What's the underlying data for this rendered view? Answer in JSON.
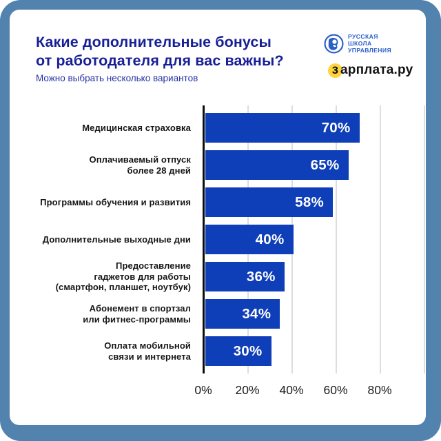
{
  "frame": {
    "border_color": "#5283ae",
    "card_bg": "#ffffff"
  },
  "header": {
    "title_line1": "Какие дополнительные бонусы",
    "title_line2": "от работодателя для вас важны?",
    "subtitle": "Можно выбрать несколько вариантов",
    "title_color": "#171f96",
    "subtitle_color": "#2531a5"
  },
  "logos": {
    "rsu": {
      "lines": [
        "РУССКАЯ",
        "ШКОЛА",
        "УПРАВЛЕНИЯ"
      ],
      "color": "#2b5fc7"
    },
    "zarplata": {
      "first_letter": "з",
      "rest": "арплата.ру",
      "highlight_color": "#ffd43b",
      "text_color": "#111111"
    }
  },
  "chart_data": {
    "type": "bar",
    "orientation": "horizontal",
    "title": "Какие дополнительные бонусы от работодателя для вас важны?",
    "subtitle": "Можно выбрать несколько вариантов",
    "categories": [
      [
        "Медицинская страховка"
      ],
      [
        "Оплачиваемый отпуск",
        "более 28 дней"
      ],
      [
        "Программы обучения и развития"
      ],
      [
        "Дополнительные выходные дни"
      ],
      [
        "Предоставление",
        "гаджетов для работы",
        "(смартфон, планшет, ноутбук)"
      ],
      [
        "Абонемент в спортзал",
        "или фитнес-программы"
      ],
      [
        "Оплата мобильной",
        "связи и интернета"
      ]
    ],
    "values": [
      70,
      65,
      58,
      40,
      36,
      34,
      30
    ],
    "value_labels": [
      "70%",
      "65%",
      "58%",
      "40%",
      "36%",
      "34%",
      "30%"
    ],
    "xlabel": "",
    "ylabel": "",
    "xlim": [
      0,
      100
    ],
    "x_ticks": [
      {
        "value": 0,
        "label": "0%"
      },
      {
        "value": 20,
        "label": "20%"
      },
      {
        "value": 40,
        "label": "40%"
      },
      {
        "value": 60,
        "label": "60%"
      },
      {
        "value": 80,
        "label": "80%"
      }
    ],
    "gridlines_percent": [
      20,
      40,
      60,
      80,
      100
    ],
    "grid": true,
    "legend": false,
    "bar_color": "#0e3eb8",
    "grid_color": "#dadde1",
    "axis_color": "#0d0d0d"
  }
}
